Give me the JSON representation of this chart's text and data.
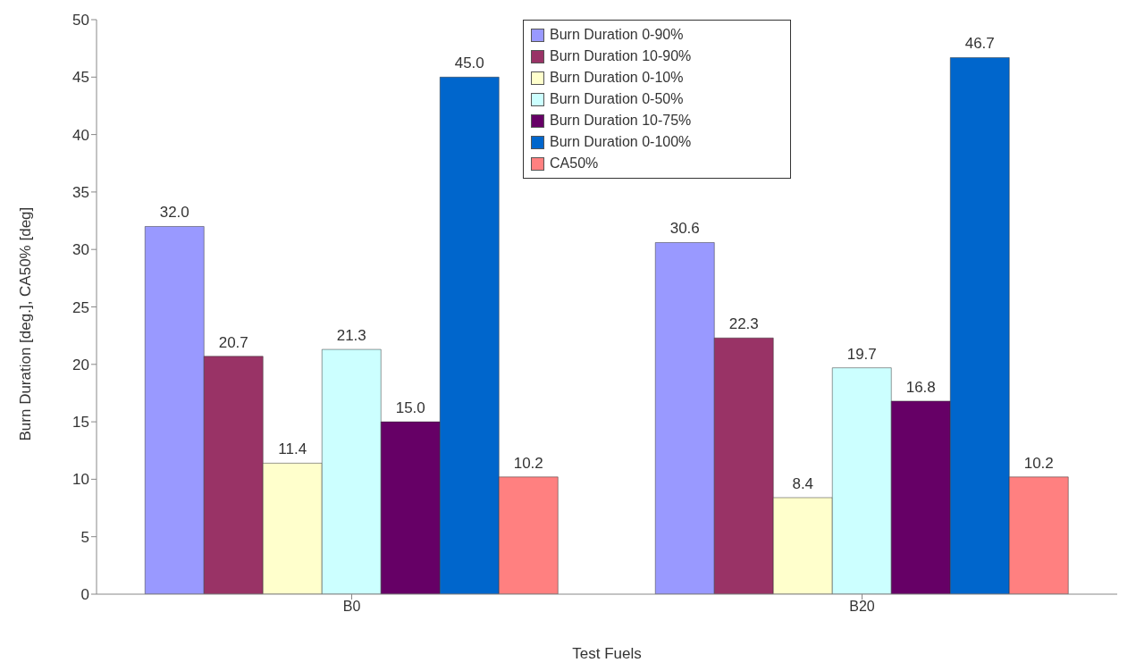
{
  "chart_data": {
    "type": "bar",
    "xlabel": "Test Fuels",
    "ylabel": "Burn Duration [deg.], CA50% [deg]",
    "categories": [
      "B0",
      "B20"
    ],
    "series": [
      {
        "name": "Burn Duration 0-90%",
        "color": "#9999ff",
        "values": [
          32,
          30.6
        ],
        "value_labels": [
          "32.0",
          "30.6"
        ]
      },
      {
        "name": "Burn Duration 10-90%",
        "color": "#993366",
        "values": [
          20.7,
          22.3
        ],
        "value_labels": [
          "20.7",
          "22.3"
        ]
      },
      {
        "name": "Burn Duration 0-10%",
        "color": "#ffffcc",
        "values": [
          11.4,
          8.4
        ],
        "value_labels": [
          "11.4",
          "8.4"
        ]
      },
      {
        "name": "Burn Duration 0-50%",
        "color": "#ccffff",
        "values": [
          21.3,
          19.7
        ],
        "value_labels": [
          "21.3",
          "19.7"
        ]
      },
      {
        "name": "Burn Duration 10-75%",
        "color": "#660066",
        "values": [
          15,
          16.8
        ],
        "value_labels": [
          "15.0",
          "16.8"
        ]
      },
      {
        "name": "Burn Duration 0-100%",
        "color": "#0066cc",
        "values": [
          45,
          46.7
        ],
        "value_labels": [
          "45.0",
          "46.7"
        ]
      },
      {
        "name": "CA50%",
        "color": "#ff8080",
        "values": [
          10.2,
          10.2
        ],
        "value_labels": [
          "10.2",
          "10.2"
        ]
      }
    ],
    "ylim": [
      0,
      50
    ],
    "yticks": [
      0,
      5,
      10,
      15,
      20,
      25,
      30,
      35,
      40,
      45,
      50
    ],
    "legend": "top",
    "grid": false
  }
}
